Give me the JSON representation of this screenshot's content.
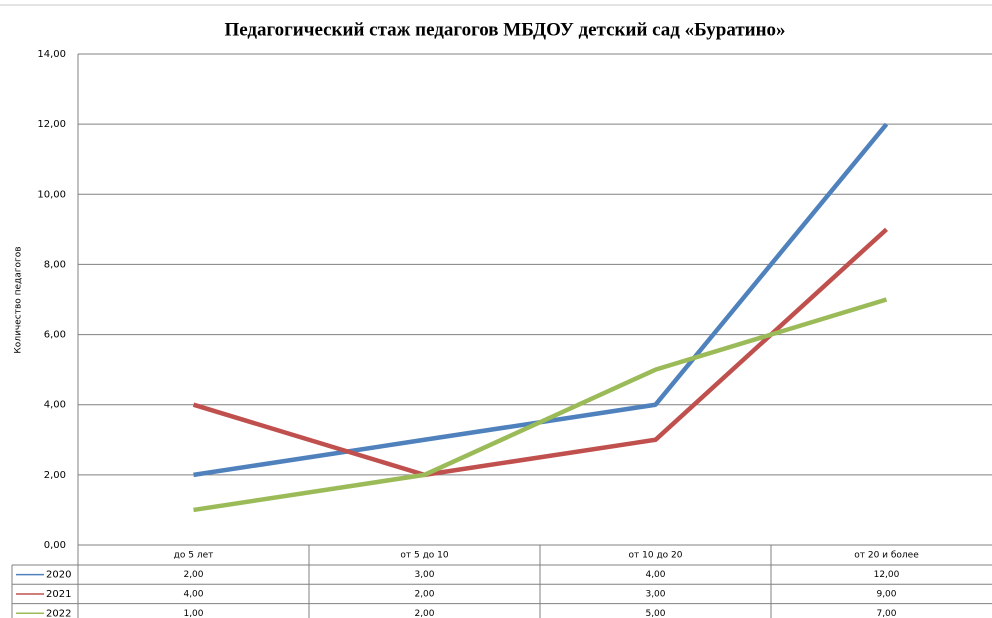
{
  "chart_data": {
    "type": "line",
    "title": "Педагогический  стаж педагогов МБДОУ детский сад «Буратино»",
    "y_label": "Количество педагогов",
    "categories": [
      "до 5 лет",
      "от 5 до 10",
      "от 10 до 20",
      "от 20 и более"
    ],
    "series": [
      {
        "name": "2020",
        "color": "#4f81bd",
        "values": [
          2,
          3,
          4,
          12
        ],
        "value_labels": [
          "2,00",
          "3,00",
          "4,00",
          "12,00"
        ]
      },
      {
        "name": "2021",
        "color": "#c0504d",
        "values": [
          4,
          2,
          3,
          9
        ],
        "value_labels": [
          "4,00",
          "2,00",
          "3,00",
          "9,00"
        ]
      },
      {
        "name": "2022",
        "color": "#9bbb59",
        "values": [
          1,
          2,
          5,
          7
        ],
        "value_labels": [
          "1,00",
          "2,00",
          "5,00",
          "7,00"
        ]
      }
    ],
    "ylim": [
      0,
      14
    ],
    "yticks": [
      {
        "value": 0,
        "label": "0,00"
      },
      {
        "value": 2,
        "label": "2,00"
      },
      {
        "value": 4,
        "label": "4,00"
      },
      {
        "value": 6,
        "label": "6,00"
      },
      {
        "value": 8,
        "label": "8,00"
      },
      {
        "value": 10,
        "label": "10,00"
      },
      {
        "value": 12,
        "label": "12,00"
      },
      {
        "value": 14,
        "label": "14,00"
      }
    ],
    "grid": true
  }
}
